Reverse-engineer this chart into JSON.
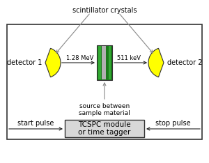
{
  "bg_color": "#ffffff",
  "title_text": "scintillator crystals",
  "detector1_label": "detector 1",
  "detector2_label": "detector 2",
  "mev_label": "1.28 MeV",
  "kev_label": "511 keV",
  "source_label": "source between\nsample material",
  "start_pulse_label": "start pulse",
  "stop_pulse_label": "stop pulse",
  "tcspc_label": "TCSPC module\nor time tagger",
  "yellow_color": "#ffff00",
  "green_dark": "#1a7a1a",
  "green_mid": "#33aa33",
  "gray_strip": "#b0b0b0",
  "box_fill": "#d8d8d8",
  "line_color": "#888888",
  "arrow_color": "#222222",
  "border_color": "#333333",
  "text_color": "#000000",
  "font_size": 7.0
}
